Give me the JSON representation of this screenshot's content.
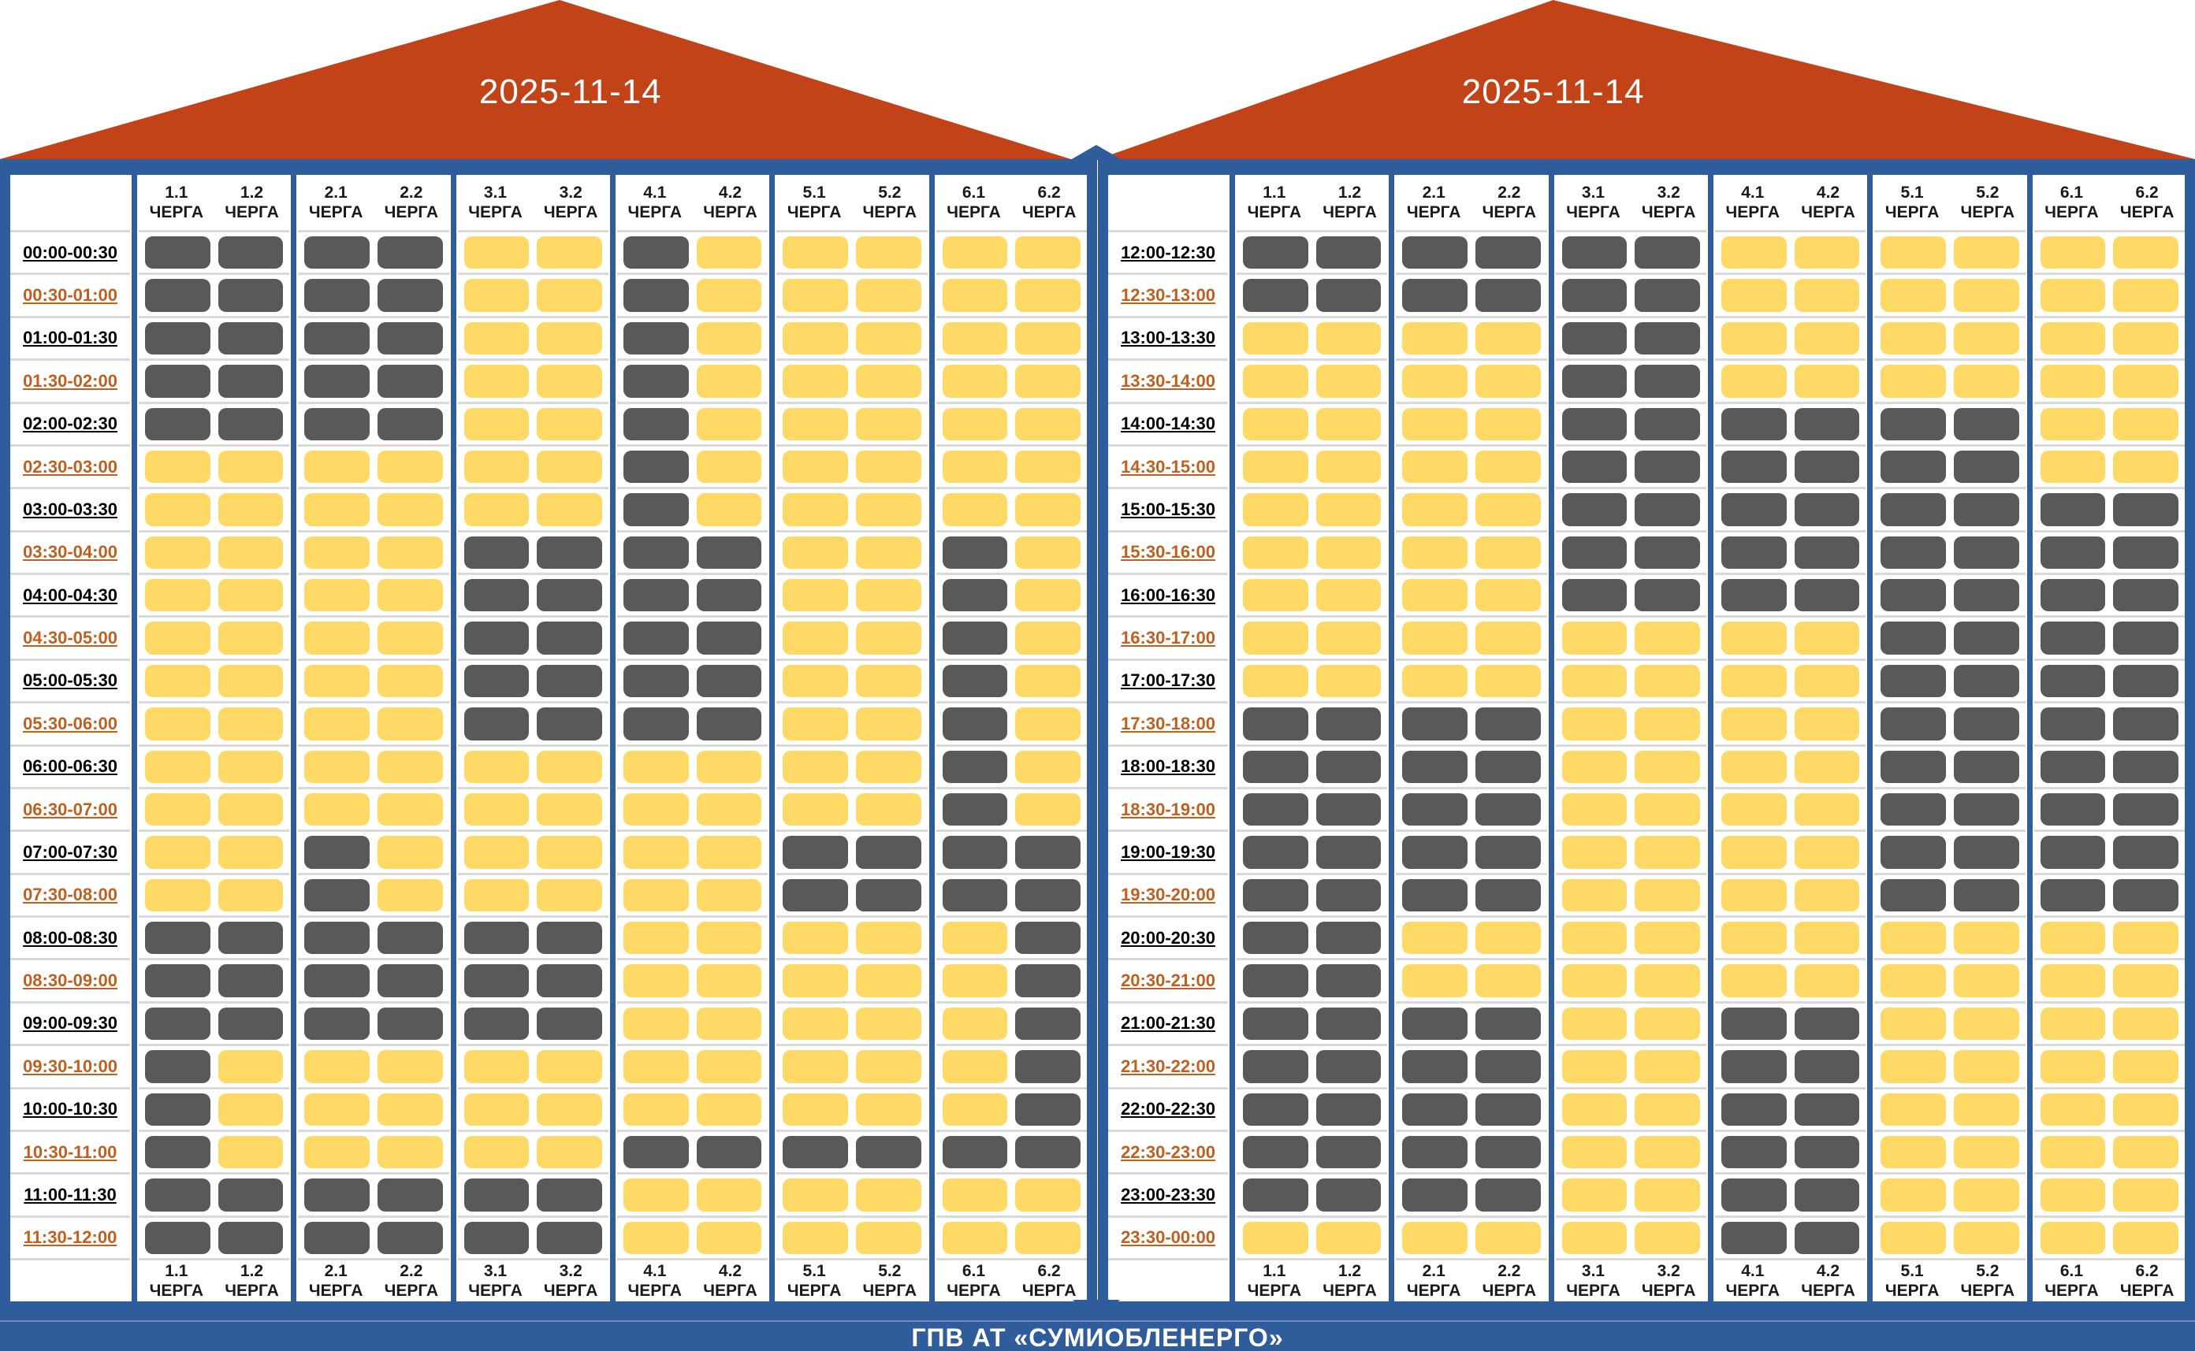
{
  "footer": {
    "title": "ГПВ АТ «СУМИОБЛЕНЕРГО»"
  },
  "queue_suffix": "ЧЕРГА",
  "colors": {
    "roof": "#C34319",
    "frame": "#2F5C9B",
    "outage_cell": "#595959",
    "power_cell": "#FFD966",
    "time_alt": "#C05F1E"
  },
  "panels": [
    {
      "date": "2025-11-14",
      "queues": [
        "1.1",
        "1.2",
        "2.1",
        "2.2",
        "3.1",
        "3.2",
        "4.1",
        "4.2",
        "5.1",
        "5.2",
        "6.1",
        "6.2"
      ],
      "rows": [
        {
          "time": "00:00-00:30",
          "cells": [
            1,
            1,
            1,
            1,
            0,
            0,
            1,
            0,
            0,
            0,
            0,
            0
          ]
        },
        {
          "time": "00:30-01:00",
          "cells": [
            1,
            1,
            1,
            1,
            0,
            0,
            1,
            0,
            0,
            0,
            0,
            0
          ]
        },
        {
          "time": "01:00-01:30",
          "cells": [
            1,
            1,
            1,
            1,
            0,
            0,
            1,
            0,
            0,
            0,
            0,
            0
          ]
        },
        {
          "time": "01:30-02:00",
          "cells": [
            1,
            1,
            1,
            1,
            0,
            0,
            1,
            0,
            0,
            0,
            0,
            0
          ]
        },
        {
          "time": "02:00-02:30",
          "cells": [
            1,
            1,
            1,
            1,
            0,
            0,
            1,
            0,
            0,
            0,
            0,
            0
          ]
        },
        {
          "time": "02:30-03:00",
          "cells": [
            0,
            0,
            0,
            0,
            0,
            0,
            1,
            0,
            0,
            0,
            0,
            0
          ]
        },
        {
          "time": "03:00-03:30",
          "cells": [
            0,
            0,
            0,
            0,
            0,
            0,
            1,
            0,
            0,
            0,
            0,
            0
          ]
        },
        {
          "time": "03:30-04:00",
          "cells": [
            0,
            0,
            0,
            0,
            1,
            1,
            1,
            1,
            0,
            0,
            1,
            0
          ]
        },
        {
          "time": "04:00-04:30",
          "cells": [
            0,
            0,
            0,
            0,
            1,
            1,
            1,
            1,
            0,
            0,
            1,
            0
          ]
        },
        {
          "time": "04:30-05:00",
          "cells": [
            0,
            0,
            0,
            0,
            1,
            1,
            1,
            1,
            0,
            0,
            1,
            0
          ]
        },
        {
          "time": "05:00-05:30",
          "cells": [
            0,
            0,
            0,
            0,
            1,
            1,
            1,
            1,
            0,
            0,
            1,
            0
          ]
        },
        {
          "time": "05:30-06:00",
          "cells": [
            0,
            0,
            0,
            0,
            1,
            1,
            1,
            1,
            0,
            0,
            1,
            0
          ]
        },
        {
          "time": "06:00-06:30",
          "cells": [
            0,
            0,
            0,
            0,
            0,
            0,
            0,
            0,
            0,
            0,
            1,
            0
          ]
        },
        {
          "time": "06:30-07:00",
          "cells": [
            0,
            0,
            0,
            0,
            0,
            0,
            0,
            0,
            0,
            0,
            1,
            0
          ]
        },
        {
          "time": "07:00-07:30",
          "cells": [
            0,
            0,
            1,
            0,
            0,
            0,
            0,
            0,
            1,
            1,
            1,
            1
          ]
        },
        {
          "time": "07:30-08:00",
          "cells": [
            0,
            0,
            1,
            0,
            0,
            0,
            0,
            0,
            1,
            1,
            1,
            1
          ]
        },
        {
          "time": "08:00-08:30",
          "cells": [
            1,
            1,
            1,
            1,
            1,
            1,
            0,
            0,
            0,
            0,
            0,
            1
          ]
        },
        {
          "time": "08:30-09:00",
          "cells": [
            1,
            1,
            1,
            1,
            1,
            1,
            0,
            0,
            0,
            0,
            0,
            1
          ]
        },
        {
          "time": "09:00-09:30",
          "cells": [
            1,
            1,
            1,
            1,
            1,
            1,
            0,
            0,
            0,
            0,
            0,
            1
          ]
        },
        {
          "time": "09:30-10:00",
          "cells": [
            1,
            0,
            0,
            0,
            0,
            0,
            0,
            0,
            0,
            0,
            0,
            1
          ]
        },
        {
          "time": "10:00-10:30",
          "cells": [
            1,
            0,
            0,
            0,
            0,
            0,
            0,
            0,
            0,
            0,
            0,
            1
          ]
        },
        {
          "time": "10:30-11:00",
          "cells": [
            1,
            0,
            0,
            0,
            0,
            0,
            1,
            1,
            1,
            1,
            1,
            1
          ]
        },
        {
          "time": "11:00-11:30",
          "cells": [
            1,
            1,
            1,
            1,
            1,
            1,
            0,
            0,
            0,
            0,
            0,
            0
          ]
        },
        {
          "time": "11:30-12:00",
          "cells": [
            1,
            1,
            1,
            1,
            1,
            1,
            0,
            0,
            0,
            0,
            0,
            0
          ]
        }
      ]
    },
    {
      "date": "2025-11-14",
      "queues": [
        "1.1",
        "1.2",
        "2.1",
        "2.2",
        "3.1",
        "3.2",
        "4.1",
        "4.2",
        "5.1",
        "5.2",
        "6.1",
        "6.2"
      ],
      "rows": [
        {
          "time": "12:00-12:30",
          "cells": [
            1,
            1,
            1,
            1,
            1,
            1,
            0,
            0,
            0,
            0,
            0,
            0
          ]
        },
        {
          "time": "12:30-13:00",
          "cells": [
            1,
            1,
            1,
            1,
            1,
            1,
            0,
            0,
            0,
            0,
            0,
            0
          ]
        },
        {
          "time": "13:00-13:30",
          "cells": [
            0,
            0,
            0,
            0,
            1,
            1,
            0,
            0,
            0,
            0,
            0,
            0
          ]
        },
        {
          "time": "13:30-14:00",
          "cells": [
            0,
            0,
            0,
            0,
            1,
            1,
            0,
            0,
            0,
            0,
            0,
            0
          ]
        },
        {
          "time": "14:00-14:30",
          "cells": [
            0,
            0,
            0,
            0,
            1,
            1,
            1,
            1,
            1,
            1,
            0,
            0
          ]
        },
        {
          "time": "14:30-15:00",
          "cells": [
            0,
            0,
            0,
            0,
            1,
            1,
            1,
            1,
            1,
            1,
            0,
            0
          ]
        },
        {
          "time": "15:00-15:30",
          "cells": [
            0,
            0,
            0,
            0,
            1,
            1,
            1,
            1,
            1,
            1,
            1,
            1
          ]
        },
        {
          "time": "15:30-16:00",
          "cells": [
            0,
            0,
            0,
            0,
            1,
            1,
            1,
            1,
            1,
            1,
            1,
            1
          ]
        },
        {
          "time": "16:00-16:30",
          "cells": [
            0,
            0,
            0,
            0,
            1,
            1,
            1,
            1,
            1,
            1,
            1,
            1
          ]
        },
        {
          "time": "16:30-17:00",
          "cells": [
            0,
            0,
            0,
            0,
            0,
            0,
            0,
            0,
            1,
            1,
            1,
            1
          ]
        },
        {
          "time": "17:00-17:30",
          "cells": [
            0,
            0,
            0,
            0,
            0,
            0,
            0,
            0,
            1,
            1,
            1,
            1
          ]
        },
        {
          "time": "17:30-18:00",
          "cells": [
            1,
            1,
            1,
            1,
            0,
            0,
            0,
            0,
            1,
            1,
            1,
            1
          ]
        },
        {
          "time": "18:00-18:30",
          "cells": [
            1,
            1,
            1,
            1,
            0,
            0,
            0,
            0,
            1,
            1,
            1,
            1
          ]
        },
        {
          "time": "18:30-19:00",
          "cells": [
            1,
            1,
            1,
            1,
            0,
            0,
            0,
            0,
            1,
            1,
            1,
            1
          ]
        },
        {
          "time": "19:00-19:30",
          "cells": [
            1,
            1,
            1,
            1,
            0,
            0,
            0,
            0,
            1,
            1,
            1,
            1
          ]
        },
        {
          "time": "19:30-20:00",
          "cells": [
            1,
            1,
            1,
            1,
            0,
            0,
            0,
            0,
            1,
            1,
            1,
            1
          ]
        },
        {
          "time": "20:00-20:30",
          "cells": [
            1,
            1,
            0,
            0,
            0,
            0,
            0,
            0,
            0,
            0,
            0,
            0
          ]
        },
        {
          "time": "20:30-21:00",
          "cells": [
            1,
            1,
            0,
            0,
            0,
            0,
            0,
            0,
            0,
            0,
            0,
            0
          ]
        },
        {
          "time": "21:00-21:30",
          "cells": [
            1,
            1,
            1,
            1,
            0,
            0,
            1,
            1,
            0,
            0,
            0,
            0
          ]
        },
        {
          "time": "21:30-22:00",
          "cells": [
            1,
            1,
            1,
            1,
            0,
            0,
            1,
            1,
            0,
            0,
            0,
            0
          ]
        },
        {
          "time": "22:00-22:30",
          "cells": [
            1,
            1,
            1,
            1,
            0,
            0,
            1,
            1,
            0,
            0,
            0,
            0
          ]
        },
        {
          "time": "22:30-23:00",
          "cells": [
            1,
            1,
            1,
            1,
            0,
            0,
            1,
            1,
            0,
            0,
            0,
            0
          ]
        },
        {
          "time": "23:00-23:30",
          "cells": [
            1,
            1,
            1,
            1,
            0,
            0,
            1,
            1,
            0,
            0,
            0,
            0
          ]
        },
        {
          "time": "23:30-00:00",
          "cells": [
            0,
            0,
            0,
            0,
            0,
            0,
            1,
            1,
            0,
            0,
            0,
            0
          ]
        }
      ]
    }
  ]
}
